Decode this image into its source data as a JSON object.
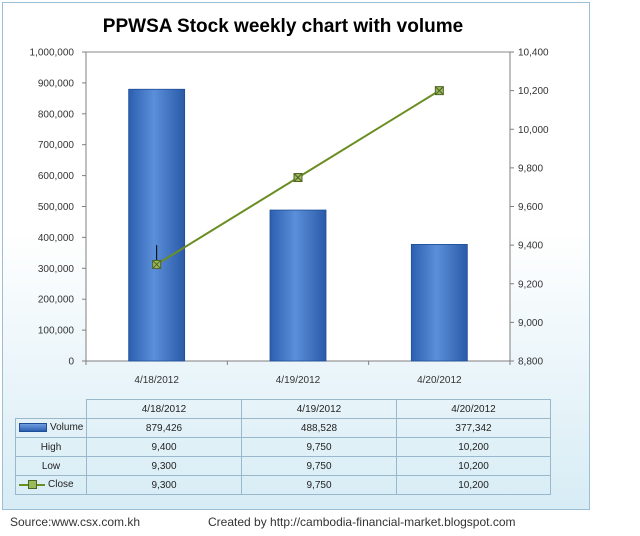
{
  "chart_data": {
    "type": "bar",
    "title": "PPWSA  Stock weekly chart with volume",
    "categories": [
      "4/18/2012",
      "4/19/2012",
      "4/20/2012"
    ],
    "series": [
      {
        "name": "Volume",
        "type": "bar",
        "axis": "left",
        "values": [
          879426,
          488528,
          377342
        ]
      },
      {
        "name": "Close",
        "type": "line",
        "axis": "right",
        "values": [
          9300,
          9750,
          10200
        ]
      }
    ],
    "high": [
      9400,
      9750,
      10200
    ],
    "low": [
      9300,
      9750,
      10200
    ],
    "y_left": {
      "min": 0,
      "max": 1000000,
      "step": 100000
    },
    "y_right": {
      "min": 8800,
      "max": 10400,
      "step": 200
    },
    "y_left_ticks": [
      "0",
      "100,000",
      "200,000",
      "300,000",
      "400,000",
      "500,000",
      "600,000",
      "700,000",
      "800,000",
      "900,000",
      "1,000,000"
    ],
    "y_right_ticks": [
      "8,800",
      "9,000",
      "9,200",
      "9,400",
      "9,600",
      "9,800",
      "10,000",
      "10,200",
      "10,400"
    ],
    "grid": false,
    "legend": "data-table-below"
  },
  "table": {
    "header": [
      "4/18/2012",
      "4/19/2012",
      "4/20/2012"
    ],
    "rows": [
      {
        "label": "Volume",
        "key": "bar",
        "cells": [
          "879,426",
          "488,528",
          "377,342"
        ]
      },
      {
        "label": "High",
        "key": "none",
        "cells": [
          "9,400",
          "9,750",
          "10,200"
        ]
      },
      {
        "label": "Low",
        "key": "none",
        "cells": [
          "9,300",
          "9,750",
          "10,200"
        ]
      },
      {
        "label": "Close",
        "key": "line",
        "cells": [
          "9,300",
          "9,750",
          "10,200"
        ]
      }
    ]
  },
  "footer": {
    "source": "Source:www.csx.com.kh",
    "credit": "Created by http://cambodia-financial-market.blogspot.com"
  },
  "colors": {
    "bar_top": "#6f9fe0",
    "bar_bottom": "#2c5fb0",
    "bar_border": "#1f4e96",
    "line": "#6b8e23",
    "marker_fill": "#9bbb59",
    "axis": "#555555",
    "table_border": "#9ab8cc"
  }
}
